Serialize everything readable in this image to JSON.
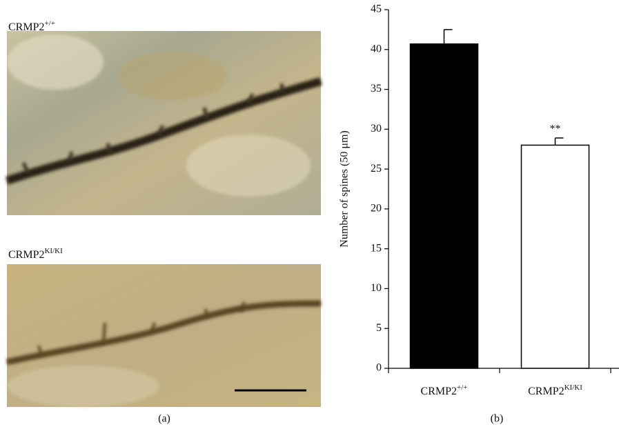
{
  "panel_a": {
    "label": "(a)",
    "images": [
      {
        "label": "CRMP2",
        "label_sup": "+/+"
      },
      {
        "label": "CRMP2",
        "label_sup": "KI/KI"
      }
    ]
  },
  "chart_data": {
    "type": "bar",
    "panel_label": "(b)",
    "y_label": "Number of spines (50 μm)",
    "categories": [
      "CRMP2",
      "CRMP2"
    ],
    "category_superscripts": [
      "+/+",
      "KI/KI"
    ],
    "values": [
      40.7,
      28.0
    ],
    "errors": [
      1.8,
      0.9
    ],
    "value_annotations": [
      null,
      "**"
    ],
    "colors": [
      "#000000",
      "#ffffff"
    ],
    "ylim": [
      0,
      45
    ],
    "yticks": [
      0,
      5,
      10,
      15,
      20,
      25,
      30,
      35,
      40,
      45
    ],
    "grid": false
  }
}
